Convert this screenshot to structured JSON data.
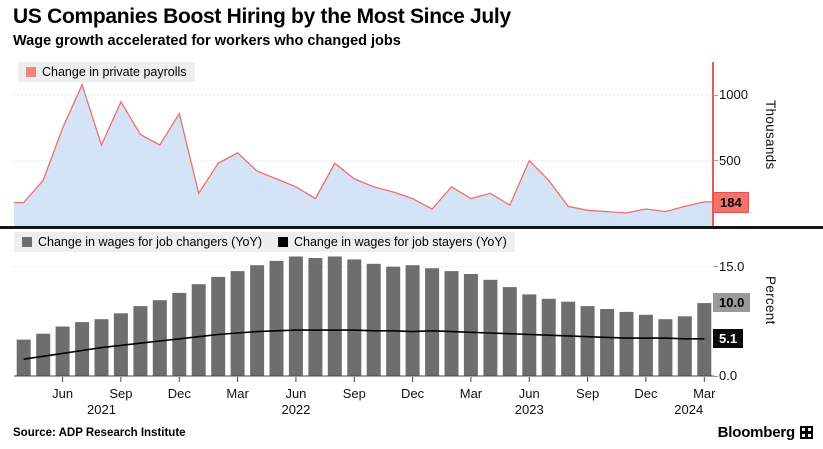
{
  "header": {
    "title": "US Companies Boost Hiring by the Most Since July",
    "subtitle": "Wage growth accelerated for workers who changed jobs"
  },
  "top_panel": {
    "legend": "Change in private payrolls",
    "axis_unit": "Thousands",
    "badge": "184"
  },
  "bottom_panel": {
    "legend_changers": "Change in wages for job changers (YoY)",
    "legend_stayers": "Change in wages for job stayers (YoY)",
    "axis_unit": "Percent",
    "badge_changers": "10.0",
    "badge_stayers": "5.1"
  },
  "x_axis": {
    "month_ticks": [
      {
        "label": "Jun",
        "i": 2
      },
      {
        "label": "Sep",
        "i": 5
      },
      {
        "label": "Dec",
        "i": 8
      },
      {
        "label": "Mar",
        "i": 11
      },
      {
        "label": "Jun",
        "i": 14
      },
      {
        "label": "Sep",
        "i": 17
      },
      {
        "label": "Dec",
        "i": 20
      },
      {
        "label": "Mar",
        "i": 23
      },
      {
        "label": "Jun",
        "i": 26
      },
      {
        "label": "Sep",
        "i": 29
      },
      {
        "label": "Dec",
        "i": 32
      },
      {
        "label": "Mar",
        "i": 35
      }
    ],
    "year_ticks": [
      {
        "label": "2021",
        "i": 4
      },
      {
        "label": "2022",
        "i": 14
      },
      {
        "label": "2023",
        "i": 26
      },
      {
        "label": "2024",
        "i": 34.2
      }
    ]
  },
  "footer": {
    "source": "Source: ADP Research Institute",
    "brand": "Bloomberg"
  },
  "colors": {
    "payrolls_fill": "#d5e3f7",
    "payrolls_line": "#ee6f6b",
    "payrolls_badge": "#f4716c",
    "changers_bar": "#6e6e6e",
    "stayers_line": "#000000",
    "legend_bg": "#eeeeee",
    "divider": "#161616"
  },
  "chart_data": [
    {
      "type": "area",
      "title": "Change in private payrolls",
      "ylabel": "Thousands",
      "legend_position": "top-left",
      "grid": true,
      "ylim": [
        0,
        1270
      ],
      "yticks": [
        500,
        1000
      ],
      "last_value": 184,
      "fill_color": "#d5e3f7",
      "line_color": "#ee6f6b",
      "x": [
        "Apr 2021",
        "May 2021",
        "Jun 2021",
        "Jul 2021",
        "Aug 2021",
        "Sep 2021",
        "Oct 2021",
        "Nov 2021",
        "Dec 2021",
        "Jan 2022",
        "Feb 2022",
        "Mar 2022",
        "Apr 2022",
        "May 2022",
        "Jun 2022",
        "Jul 2022",
        "Aug 2022",
        "Sep 2022",
        "Oct 2022",
        "Nov 2022",
        "Dec 2022",
        "Jan 2023",
        "Feb 2023",
        "Mar 2023",
        "Apr 2023",
        "May 2023",
        "Jun 2023",
        "Jul 2023",
        "Aug 2023",
        "Sep 2023",
        "Oct 2023",
        "Nov 2023",
        "Dec 2023",
        "Jan 2024",
        "Feb 2024",
        "Mar 2024"
      ],
      "values": [
        180,
        350,
        750,
        1080,
        620,
        950,
        700,
        620,
        860,
        250,
        480,
        560,
        420,
        360,
        300,
        210,
        480,
        360,
        300,
        260,
        210,
        130,
        300,
        210,
        250,
        160,
        500,
        350,
        150,
        120,
        110,
        100,
        130,
        110,
        150,
        184
      ]
    },
    {
      "type": "bar",
      "ylabel": "Percent",
      "legend_position": "top-left",
      "grid": true,
      "ylim": [
        0,
        19.9
      ],
      "yticks": [
        0,
        15
      ],
      "categories": [
        "Apr 2021",
        "May 2021",
        "Jun 2021",
        "Jul 2021",
        "Aug 2021",
        "Sep 2021",
        "Oct 2021",
        "Nov 2021",
        "Dec 2021",
        "Jan 2022",
        "Feb 2022",
        "Mar 2022",
        "Apr 2022",
        "May 2022",
        "Jun 2022",
        "Jul 2022",
        "Aug 2022",
        "Sep 2022",
        "Oct 2022",
        "Nov 2022",
        "Dec 2022",
        "Jan 2023",
        "Feb 2023",
        "Mar 2023",
        "Apr 2023",
        "May 2023",
        "Jun 2023",
        "Jul 2023",
        "Aug 2023",
        "Sep 2023",
        "Oct 2023",
        "Nov 2023",
        "Dec 2023",
        "Jan 2024",
        "Feb 2024",
        "Mar 2024"
      ],
      "series": [
        {
          "name": "Change in wages for job changers (YoY)",
          "type": "bar",
          "color": "#6e6e6e",
          "last_value": 10.0,
          "values": [
            5.0,
            5.8,
            6.8,
            7.4,
            7.8,
            8.6,
            9.6,
            10.4,
            11.4,
            12.6,
            13.6,
            14.4,
            15.2,
            15.8,
            16.4,
            16.2,
            16.4,
            16.0,
            15.4,
            15.0,
            15.2,
            14.8,
            14.4,
            14.0,
            13.2,
            12.2,
            11.2,
            10.6,
            10.2,
            9.6,
            9.2,
            8.8,
            8.4,
            7.8,
            8.2,
            10.0
          ]
        },
        {
          "name": "Change in wages for job stayers (YoY)",
          "type": "line",
          "color": "#000000",
          "last_value": 5.1,
          "values": [
            2.3,
            2.7,
            3.1,
            3.5,
            3.9,
            4.2,
            4.5,
            4.8,
            5.1,
            5.4,
            5.7,
            5.9,
            6.1,
            6.2,
            6.3,
            6.3,
            6.3,
            6.3,
            6.2,
            6.2,
            6.1,
            6.2,
            6.1,
            6.0,
            5.9,
            5.8,
            5.7,
            5.6,
            5.5,
            5.4,
            5.3,
            5.2,
            5.2,
            5.2,
            5.1,
            5.1
          ]
        }
      ]
    }
  ]
}
